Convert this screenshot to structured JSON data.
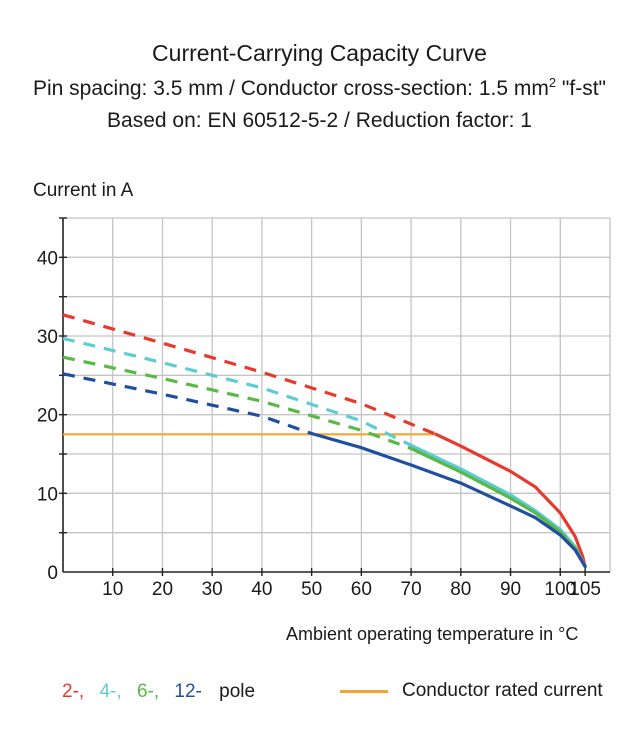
{
  "title": "Current-Carrying Capacity Curve",
  "subtitle_pre": "Pin spacing: 3.5 mm / Conductor cross-section: 1.5 mm",
  "subtitle_sup": "2",
  "subtitle_post": " \"f-st\"",
  "based_on": "Based on: EN 60512-5-2 / Reduction factor: 1",
  "legend": {
    "items": [
      {
        "label": "2-,",
        "color": "#e63a2e"
      },
      {
        "label": "4-,",
        "color": "#5ccbd2"
      },
      {
        "label": "6-,",
        "color": "#59b947"
      },
      {
        "label": "12-",
        "color": "#1f4f9e"
      }
    ],
    "pole_label": "pole",
    "rated_label": "Conductor rated current",
    "rated_color": "#f5a431"
  },
  "chart_data": {
    "type": "line",
    "title": "Current-Carrying Capacity Curve",
    "xlabel": "Ambient operating temperature in °C",
    "ylabel": "Current in A",
    "xlim": [
      0,
      110
    ],
    "ylim": [
      0,
      45
    ],
    "xticks": [
      10,
      20,
      30,
      40,
      50,
      60,
      70,
      80,
      90,
      100,
      105
    ],
    "yticks": [
      0,
      10,
      20,
      30,
      40
    ],
    "grid": true,
    "rated_current": {
      "name": "Conductor rated current",
      "value": 17.5,
      "x_range": [
        0,
        75
      ],
      "color": "#f5a431"
    },
    "series": [
      {
        "name": "2-pole",
        "color": "#e63a2e",
        "derated": [
          [
            0,
            32.7
          ],
          [
            20,
            29.1
          ],
          [
            40,
            25.4
          ],
          [
            60,
            21.4
          ],
          [
            75,
            17.5
          ]
        ],
        "rated": [
          [
            75,
            17.5
          ],
          [
            80,
            16.0
          ],
          [
            90,
            12.8
          ],
          [
            95,
            10.8
          ],
          [
            100,
            7.5
          ],
          [
            103,
            4.5
          ],
          [
            104.5,
            2.0
          ],
          [
            105,
            0.7
          ]
        ]
      },
      {
        "name": "4-pole",
        "color": "#5ccbd2",
        "derated": [
          [
            0,
            29.7
          ],
          [
            20,
            26.6
          ],
          [
            40,
            23.4
          ],
          [
            60,
            19.2
          ],
          [
            70,
            16.1
          ]
        ],
        "rated": [
          [
            70,
            16.1
          ],
          [
            80,
            13.1
          ],
          [
            90,
            9.8
          ],
          [
            95,
            7.8
          ],
          [
            100,
            5.4
          ],
          [
            103,
            3.2
          ],
          [
            105,
            0.7
          ]
        ]
      },
      {
        "name": "6-pole",
        "color": "#59b947",
        "derated": [
          [
            0,
            27.3
          ],
          [
            20,
            24.6
          ],
          [
            40,
            21.7
          ],
          [
            60,
            18.0
          ],
          [
            70,
            15.7
          ]
        ],
        "rated": [
          [
            70,
            15.7
          ],
          [
            80,
            12.7
          ],
          [
            90,
            9.4
          ],
          [
            95,
            7.5
          ],
          [
            100,
            5.1
          ],
          [
            103,
            3.0
          ],
          [
            105,
            0.7
          ]
        ]
      },
      {
        "name": "12-pole",
        "color": "#1f4f9e",
        "derated": [
          [
            0,
            25.2
          ],
          [
            20,
            22.6
          ],
          [
            40,
            19.8
          ],
          [
            50,
            17.6
          ]
        ],
        "rated": [
          [
            50,
            17.6
          ],
          [
            60,
            15.8
          ],
          [
            70,
            13.6
          ],
          [
            80,
            11.3
          ],
          [
            90,
            8.4
          ],
          [
            95,
            6.9
          ],
          [
            100,
            4.7
          ],
          [
            103,
            2.8
          ],
          [
            105,
            0.7
          ]
        ]
      }
    ]
  }
}
